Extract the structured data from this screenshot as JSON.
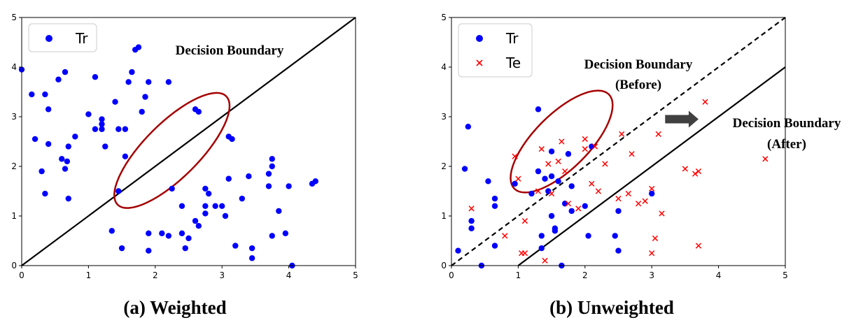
{
  "colors": {
    "train": "#0000ff",
    "test": "#ff0000",
    "ellipse": "#a50000",
    "boundary": "#000000",
    "arrow": "#404040",
    "legend_border": "#cccccc"
  },
  "chart_data": [
    {
      "id": "a",
      "type": "scatter",
      "caption": "(a) Weighted",
      "xlim": [
        0,
        5
      ],
      "ylim": [
        0,
        5
      ],
      "xticks": [
        "0",
        "1",
        "2",
        "3",
        "4",
        "5"
      ],
      "yticks": [
        "0",
        "1",
        "2",
        "3",
        "4",
        "5"
      ],
      "legend": [
        {
          "label": "Tr",
          "marker": "circle",
          "color": "#0000ff"
        }
      ],
      "boundaries": [
        {
          "label": "Decision Boundary",
          "x": [
            0,
            5
          ],
          "y": [
            0,
            5
          ],
          "dashed": false
        }
      ],
      "ellipse": {
        "cx": 2.25,
        "cy": 2.32,
        "rx": 1.15,
        "ry": 0.55,
        "angle_deg": 45
      },
      "series": [
        {
          "name": "Tr",
          "marker": "circle",
          "color": "#0000ff",
          "points": [
            [
              0.0,
              3.95
            ],
            [
              0.15,
              3.45
            ],
            [
              0.2,
              2.55
            ],
            [
              0.3,
              1.9
            ],
            [
              0.35,
              1.45
            ],
            [
              0.35,
              3.45
            ],
            [
              0.4,
              3.15
            ],
            [
              0.4,
              2.45
            ],
            [
              0.55,
              3.75
            ],
            [
              0.6,
              2.15
            ],
            [
              0.65,
              1.95
            ],
            [
              0.65,
              3.9
            ],
            [
              0.68,
              2.1
            ],
            [
              0.7,
              2.4
            ],
            [
              0.7,
              1.35
            ],
            [
              0.8,
              2.6
            ],
            [
              1.0,
              3.05
            ],
            [
              1.1,
              3.8
            ],
            [
              1.1,
              2.75
            ],
            [
              1.2,
              2.95
            ],
            [
              1.2,
              2.85
            ],
            [
              1.2,
              2.75
            ],
            [
              1.25,
              2.4
            ],
            [
              1.4,
              3.3
            ],
            [
              1.45,
              2.75
            ],
            [
              1.55,
              2.75
            ],
            [
              1.55,
              2.2
            ],
            [
              1.6,
              3.7
            ],
            [
              1.65,
              3.9
            ],
            [
              1.7,
              4.35
            ],
            [
              1.75,
              4.4
            ],
            [
              1.8,
              3.1
            ],
            [
              1.85,
              3.4
            ],
            [
              1.9,
              3.7
            ],
            [
              2.2,
              3.7
            ],
            [
              2.25,
              1.55
            ],
            [
              1.35,
              0.7
            ],
            [
              1.45,
              1.5
            ],
            [
              1.5,
              0.35
            ],
            [
              1.9,
              0.65
            ],
            [
              1.9,
              0.3
            ],
            [
              2.1,
              0.65
            ],
            [
              2.2,
              0.6
            ],
            [
              2.4,
              0.65
            ],
            [
              2.4,
              1.2
            ],
            [
              2.45,
              0.35
            ],
            [
              2.5,
              0.55
            ],
            [
              2.6,
              0.9
            ],
            [
              2.6,
              3.15
            ],
            [
              2.65,
              3.1
            ],
            [
              2.65,
              0.8
            ],
            [
              2.75,
              1.55
            ],
            [
              2.75,
              1.2
            ],
            [
              2.75,
              1.05
            ],
            [
              2.8,
              1.45
            ],
            [
              2.9,
              1.2
            ],
            [
              3.0,
              1.2
            ],
            [
              3.05,
              1.0
            ],
            [
              3.1,
              1.75
            ],
            [
              3.1,
              2.6
            ],
            [
              3.15,
              2.55
            ],
            [
              3.2,
              0.4
            ],
            [
              3.3,
              1.35
            ],
            [
              3.4,
              1.8
            ],
            [
              3.45,
              0.35
            ],
            [
              3.45,
              0.15
            ],
            [
              3.7,
              1.6
            ],
            [
              3.7,
              1.85
            ],
            [
              3.75,
              2.15
            ],
            [
              3.75,
              0.6
            ],
            [
              3.75,
              2.0
            ],
            [
              3.85,
              1.1
            ],
            [
              3.95,
              0.65
            ],
            [
              4.0,
              1.6
            ],
            [
              4.05,
              0.0
            ],
            [
              4.4,
              1.7
            ],
            [
              4.35,
              1.65
            ]
          ]
        }
      ],
      "annotations": [
        {
          "lines": [
            "Decision Boundary"
          ],
          "at": [
            3.25,
            4.38
          ]
        }
      ]
    },
    {
      "id": "b",
      "type": "scatter",
      "caption": "(b) Unweighted",
      "xlim": [
        0,
        5
      ],
      "ylim": [
        0,
        5
      ],
      "xticks": [
        "0",
        "1",
        "2",
        "3",
        "4",
        "5"
      ],
      "yticks": [
        "0",
        "1",
        "2",
        "3",
        "4",
        "5"
      ],
      "legend": [
        {
          "label": "Tr",
          "marker": "circle",
          "color": "#0000ff"
        },
        {
          "label": "Te",
          "marker": "x",
          "color": "#ff0000"
        }
      ],
      "boundaries": [
        {
          "label": "Decision Boundary (Before)",
          "x": [
            0,
            5
          ],
          "y": [
            0,
            5
          ],
          "dashed": true
        },
        {
          "label": "Decision Boundary (After)",
          "x": [
            1,
            5
          ],
          "y": [
            0,
            4
          ],
          "dashed": false
        }
      ],
      "ellipse": {
        "cx": 1.65,
        "cy": 2.5,
        "rx": 1.0,
        "ry": 0.55,
        "angle_deg": 45
      },
      "arrow": {
        "from": [
          3.2,
          2.95
        ],
        "to": [
          3.7,
          2.95
        ]
      },
      "series": [
        {
          "name": "Tr",
          "marker": "circle",
          "color": "#0000ff",
          "points": [
            [
              0.1,
              0.3
            ],
            [
              0.2,
              1.95
            ],
            [
              0.25,
              2.8
            ],
            [
              0.3,
              0.75
            ],
            [
              0.3,
              0.9
            ],
            [
              0.45,
              0.0
            ],
            [
              0.55,
              1.7
            ],
            [
              0.65,
              1.35
            ],
            [
              0.65,
              1.2
            ],
            [
              0.65,
              0.4
            ],
            [
              0.95,
              1.65
            ],
            [
              1.2,
              1.45
            ],
            [
              1.3,
              3.15
            ],
            [
              1.3,
              1.9
            ],
            [
              1.35,
              0.6
            ],
            [
              1.35,
              0.35
            ],
            [
              1.4,
              1.75
            ],
            [
              1.45,
              1.5
            ],
            [
              1.5,
              2.3
            ],
            [
              1.5,
              1.8
            ],
            [
              1.5,
              1.0
            ],
            [
              1.55,
              0.75
            ],
            [
              1.55,
              0.7
            ],
            [
              1.6,
              1.7
            ],
            [
              1.65,
              0.0
            ],
            [
              1.7,
              1.25
            ],
            [
              1.75,
              2.25
            ],
            [
              1.8,
              1.6
            ],
            [
              1.8,
              1.1
            ],
            [
              2.0,
              1.2
            ],
            [
              2.05,
              0.6
            ],
            [
              2.1,
              2.4
            ],
            [
              2.45,
              0.6
            ],
            [
              2.5,
              0.3
            ],
            [
              2.5,
              1.1
            ],
            [
              3.0,
              1.45
            ]
          ]
        },
        {
          "name": "Te",
          "marker": "x",
          "color": "#ff0000",
          "points": [
            [
              0.3,
              1.15
            ],
            [
              0.8,
              0.6
            ],
            [
              0.95,
              2.2
            ],
            [
              1.0,
              1.75
            ],
            [
              1.05,
              0.25
            ],
            [
              1.1,
              0.25
            ],
            [
              1.1,
              0.9
            ],
            [
              1.3,
              1.5
            ],
            [
              1.35,
              2.35
            ],
            [
              1.4,
              0.1
            ],
            [
              1.45,
              2.05
            ],
            [
              1.5,
              1.45
            ],
            [
              1.6,
              2.1
            ],
            [
              1.65,
              2.5
            ],
            [
              1.7,
              1.9
            ],
            [
              1.75,
              1.25
            ],
            [
              1.9,
              1.15
            ],
            [
              2.0,
              2.55
            ],
            [
              2.0,
              2.35
            ],
            [
              2.1,
              1.65
            ],
            [
              2.15,
              2.4
            ],
            [
              2.2,
              1.5
            ],
            [
              2.3,
              2.05
            ],
            [
              2.5,
              1.35
            ],
            [
              2.55,
              2.65
            ],
            [
              2.65,
              1.45
            ],
            [
              2.7,
              2.25
            ],
            [
              2.8,
              1.25
            ],
            [
              2.9,
              1.3
            ],
            [
              3.0,
              1.55
            ],
            [
              3.0,
              0.25
            ],
            [
              3.05,
              0.55
            ],
            [
              3.1,
              2.65
            ],
            [
              3.15,
              1.05
            ],
            [
              3.5,
              1.95
            ],
            [
              3.65,
              1.85
            ],
            [
              3.7,
              1.9
            ],
            [
              3.7,
              0.4
            ],
            [
              3.8,
              3.3
            ],
            [
              4.7,
              2.15
            ]
          ]
        }
      ],
      "annotations": [
        {
          "lines": [
            "Decision Boundary",
            "(Before)"
          ],
          "at": [
            2.25,
            4.05
          ]
        },
        {
          "lines": [
            "Decision Boundary",
            "(After)"
          ],
          "at": [
            4.65,
            2.82
          ]
        }
      ]
    }
  ]
}
